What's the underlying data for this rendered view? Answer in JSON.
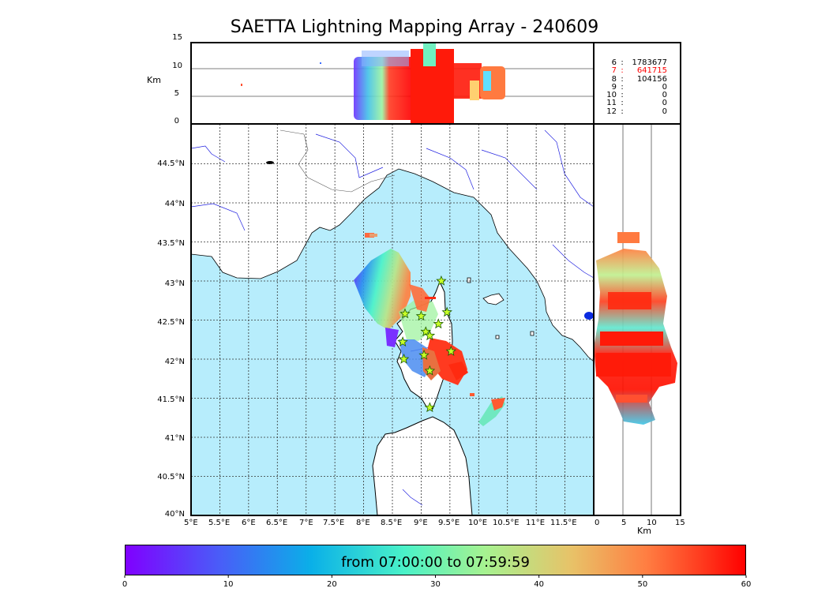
{
  "title": "SAETTA Lightning Mapping Array - 240609",
  "top_panel": {
    "ylabel": "Km",
    "yticks": [
      "15",
      "10",
      "5",
      "0"
    ]
  },
  "right_panel": {
    "xlabel": "Km",
    "xticks": [
      "0",
      "5",
      "10",
      "15"
    ]
  },
  "map": {
    "lon_ticks": [
      "5°E",
      "5.5°E",
      "6°E",
      "6.5°E",
      "7°E",
      "7.5°E",
      "8°E",
      "8.5°E",
      "9°E",
      "9.5°E",
      "10°E",
      "10.5°E",
      "11°E",
      "11.5°E"
    ],
    "lat_ticks": [
      "44.5°N",
      "44°N",
      "43.5°N",
      "43°N",
      "42.5°N",
      "42°N",
      "41.5°N",
      "41°N",
      "40.5°N",
      "40°N"
    ],
    "lon_range": [
      5,
      12
    ],
    "lat_range": [
      40,
      45
    ],
    "sea_color": "#b7edfc",
    "river_color": "#2020e0"
  },
  "stats": [
    {
      "level": "6",
      "count": "1783677",
      "highlight": false
    },
    {
      "level": "7",
      "count": "641715",
      "highlight": true
    },
    {
      "level": "8",
      "count": "104156",
      "highlight": false
    },
    {
      "level": "9",
      "count": "0",
      "highlight": false
    },
    {
      "level": "10",
      "count": "0",
      "highlight": false
    },
    {
      "level": "11",
      "count": "0",
      "highlight": false
    },
    {
      "level": "12",
      "count": "0",
      "highlight": false
    }
  ],
  "stats_sep": ":",
  "stations": [
    {
      "lon": 9.35,
      "lat": 43.0
    },
    {
      "lon": 8.72,
      "lat": 42.58
    },
    {
      "lon": 9.0,
      "lat": 42.55
    },
    {
      "lon": 9.45,
      "lat": 42.6
    },
    {
      "lon": 9.3,
      "lat": 42.45
    },
    {
      "lon": 9.08,
      "lat": 42.35
    },
    {
      "lon": 9.15,
      "lat": 42.3
    },
    {
      "lon": 8.68,
      "lat": 42.22
    },
    {
      "lon": 9.52,
      "lat": 42.1
    },
    {
      "lon": 8.7,
      "lat": 42.0
    },
    {
      "lon": 9.05,
      "lat": 42.05
    },
    {
      "lon": 9.15,
      "lat": 41.85
    },
    {
      "lon": 9.15,
      "lat": 41.38
    }
  ],
  "colorbar": {
    "label": "from 07:00:00 to 07:59:59",
    "ticks": [
      "0",
      "10",
      "20",
      "30",
      "40",
      "50",
      "60"
    ],
    "range": [
      0,
      60
    ]
  }
}
